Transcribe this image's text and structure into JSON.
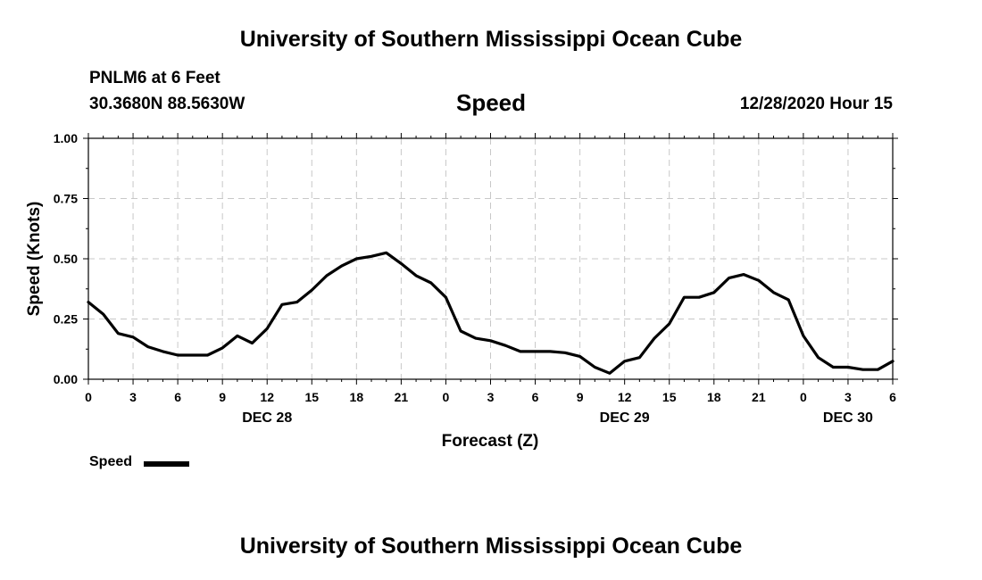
{
  "header": {
    "title": "University of Southern Mississippi Ocean Cube",
    "station": "PNLM6 at 6 Feet",
    "coordinates": "30.3680N 88.5630W",
    "variable": "Speed",
    "datetime": "12/28/2020 Hour 15"
  },
  "footer": {
    "title": "University of Southern Mississippi Ocean Cube"
  },
  "legend": {
    "label": "Speed",
    "color": "#000000"
  },
  "chart_data": {
    "type": "line",
    "title": "Speed",
    "xlabel": "Forecast (Z)",
    "ylabel": "Speed (Knots)",
    "xlim": [
      0,
      54
    ],
    "ylim": [
      0,
      1
    ],
    "grid": true,
    "x_tick_values": [
      0,
      3,
      6,
      9,
      12,
      15,
      18,
      21,
      24,
      27,
      30,
      33,
      36,
      39,
      42,
      45,
      48,
      51,
      54
    ],
    "x_tick_labels": [
      "0",
      "3",
      "6",
      "9",
      "12",
      "15",
      "18",
      "21",
      "0",
      "3",
      "6",
      "9",
      "12",
      "15",
      "18",
      "21",
      "0",
      "3",
      "6"
    ],
    "y_tick_values": [
      0,
      0.25,
      0.5,
      0.75,
      1.0
    ],
    "y_tick_labels": [
      "0.00",
      "0.25",
      "0.50",
      "0.75",
      "1.00"
    ],
    "date_labels": [
      {
        "x": 12,
        "label": "DEC 28"
      },
      {
        "x": 36,
        "label": "DEC 29"
      },
      {
        "x": 51,
        "label": "DEC 30"
      }
    ],
    "series": [
      {
        "name": "Speed",
        "color": "#000000",
        "x": [
          0,
          1,
          2,
          3,
          4,
          5,
          6,
          7,
          8,
          9,
          10,
          11,
          12,
          13,
          14,
          15,
          16,
          17,
          18,
          19,
          20,
          21,
          22,
          23,
          24,
          25,
          26,
          27,
          28,
          29,
          30,
          31,
          32,
          33,
          34,
          35,
          36,
          37,
          38,
          39,
          40,
          41,
          42,
          43,
          44,
          45,
          46,
          47,
          48,
          49,
          50,
          51,
          52,
          53,
          54
        ],
        "values": [
          0.32,
          0.27,
          0.19,
          0.175,
          0.135,
          0.115,
          0.1,
          0.1,
          0.1,
          0.13,
          0.18,
          0.15,
          0.21,
          0.31,
          0.32,
          0.37,
          0.43,
          0.47,
          0.5,
          0.51,
          0.525,
          0.48,
          0.43,
          0.4,
          0.34,
          0.2,
          0.17,
          0.16,
          0.14,
          0.115,
          0.115,
          0.115,
          0.11,
          0.095,
          0.05,
          0.025,
          0.075,
          0.09,
          0.17,
          0.23,
          0.34,
          0.34,
          0.36,
          0.42,
          0.435,
          0.41,
          0.36,
          0.33,
          0.18,
          0.09,
          0.05,
          0.05,
          0.04,
          0.04,
          0.075
        ]
      }
    ]
  }
}
